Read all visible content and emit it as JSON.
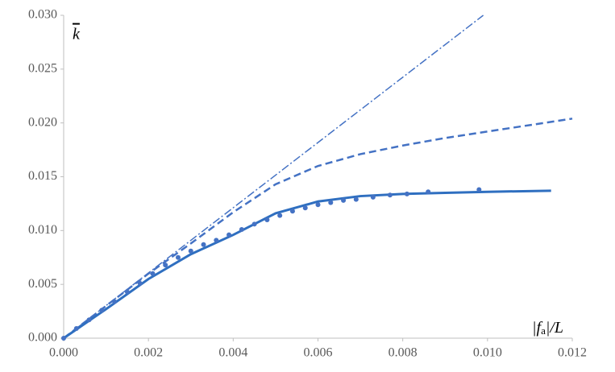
{
  "chart_data": {
    "type": "line",
    "ylabel": "k",
    "xlabel_parts": [
      "|f",
      "a",
      "|/L"
    ],
    "xlim": [
      0,
      0.012
    ],
    "ylim": [
      0,
      0.03
    ],
    "xticks": [
      {
        "value": 0,
        "label": "0.000"
      },
      {
        "value": 0.002,
        "label": "0.002"
      },
      {
        "value": 0.004,
        "label": "0.004"
      },
      {
        "value": 0.006,
        "label": "0.006"
      },
      {
        "value": 0.008,
        "label": "0.008"
      },
      {
        "value": 0.01,
        "label": "0.010"
      },
      {
        "value": 0.012,
        "label": "0.012"
      }
    ],
    "yticks": [
      {
        "value": 0,
        "label": "0.000"
      },
      {
        "value": 0.005,
        "label": "0.005"
      },
      {
        "value": 0.01,
        "label": "0.010"
      },
      {
        "value": 0.015,
        "label": "0.015"
      },
      {
        "value": 0.02,
        "label": "0.020"
      },
      {
        "value": 0.025,
        "label": "0.025"
      },
      {
        "value": 0.03,
        "label": "0.030"
      }
    ],
    "series": [
      {
        "style": "dashdot",
        "color": "#4472c4",
        "x": [
          0,
          0.0099
        ],
        "values": [
          0,
          0.03
        ]
      },
      {
        "style": "dashed",
        "color": "#4472c4",
        "x": [
          0,
          0.001,
          0.002,
          0.003,
          0.004,
          0.005,
          0.006,
          0.007,
          0.008,
          0.009,
          0.01,
          0.011,
          0.012
        ],
        "values": [
          0,
          0.003,
          0.006,
          0.0088,
          0.0117,
          0.0143,
          0.016,
          0.0171,
          0.0179,
          0.0186,
          0.0192,
          0.0198,
          0.0204
        ]
      },
      {
        "style": "solid",
        "color": "#2f6fc0",
        "x": [
          0,
          0.001,
          0.002,
          0.003,
          0.004,
          0.005,
          0.006,
          0.007,
          0.008,
          0.009,
          0.01,
          0.0115
        ],
        "values": [
          0,
          0.0027,
          0.0055,
          0.0078,
          0.0096,
          0.0116,
          0.0127,
          0.0132,
          0.0134,
          0.0135,
          0.0136,
          0.0137
        ]
      },
      {
        "style": "markers",
        "color": "#4472c4",
        "x": [
          0,
          0.0003,
          0.0006,
          0.0009,
          0.0012,
          0.0015,
          0.0018,
          0.0021,
          0.0024,
          0.0027,
          0.003,
          0.0033,
          0.0036,
          0.0039,
          0.0042,
          0.0045,
          0.0048,
          0.0051,
          0.0054,
          0.0057,
          0.006,
          0.0063,
          0.0066,
          0.0069,
          0.0073,
          0.0077,
          0.0081,
          0.0086,
          0.0098
        ],
        "values": [
          0,
          0.0009,
          0.0017,
          0.0026,
          0.0034,
          0.0043,
          0.0051,
          0.006,
          0.0068,
          0.0075,
          0.0081,
          0.0087,
          0.0091,
          0.0096,
          0.0101,
          0.0106,
          0.011,
          0.0114,
          0.0118,
          0.0121,
          0.0124,
          0.0126,
          0.0128,
          0.0129,
          0.0131,
          0.0133,
          0.0134,
          0.0136,
          0.0138
        ]
      }
    ]
  }
}
